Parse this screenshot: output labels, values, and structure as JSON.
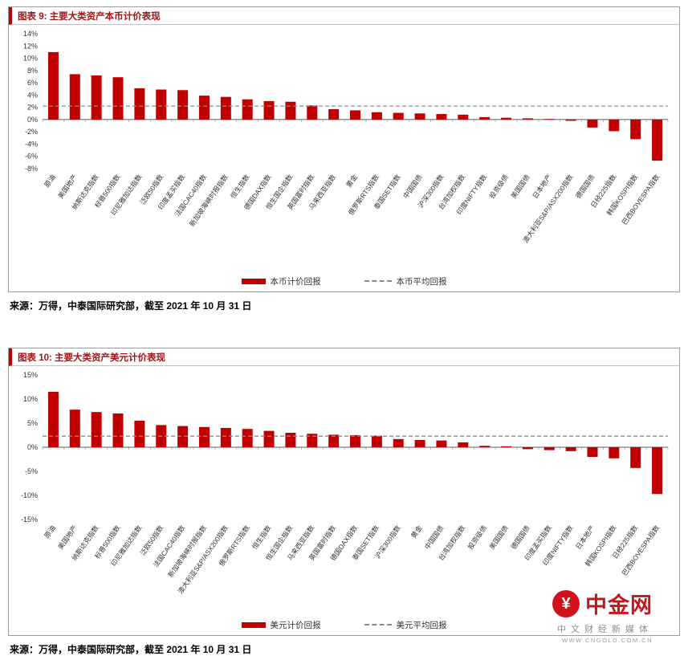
{
  "figures": [
    {
      "source": "来源：万得，中泰国际研究部，截至 2021 年 10 月 31 日"
    },
    {
      "source": "来源：万得，中泰国际研究部，截至 2021 年 10 月 31 日"
    }
  ],
  "chart_data": [
    {
      "type": "bar",
      "title": "图表 9: 主要大类资产本币计价表现",
      "categories": [
        "原油",
        "美国地产",
        "纳斯达克指数",
        "标普500指数",
        "印尼雅加达指数",
        "泛欧50指数",
        "印度孟买指数",
        "法国CAC40指数",
        "新加坡海峡时报指数",
        "恒生指数",
        "德国DAX指数",
        "恒生国企指数",
        "英国富时指数",
        "马来西亚指数",
        "黄金",
        "俄罗斯RTS指数",
        "泰国SET指数",
        "中国国债",
        "沪深300指数",
        "台湾加权指数",
        "印度NIFTY指数",
        "投资级债",
        "美国国债",
        "日本地产",
        "澳大利亚S&P/ASX200指数",
        "德国国债",
        "日经225指数",
        "韩国KOSPI指数",
        "巴西BOVESPA指数"
      ],
      "values": [
        11.0,
        7.4,
        7.2,
        6.9,
        5.1,
        4.9,
        4.8,
        3.9,
        3.7,
        3.3,
        3.0,
        2.9,
        2.3,
        1.7,
        1.5,
        1.2,
        1.1,
        1.0,
        0.9,
        0.8,
        0.4,
        0.3,
        0.2,
        0.1,
        -0.2,
        -1.3,
        -1.9,
        -3.2,
        -6.7
      ],
      "average": 2.2,
      "ylim": [
        -8,
        14
      ],
      "yticks": [
        14,
        12,
        10,
        8,
        6,
        4,
        2,
        0,
        -2,
        -4,
        -6,
        -8
      ],
      "legend": [
        "本币计价回报",
        "本币平均回报"
      ],
      "bar_color": "#c00000",
      "avg_line_color": "#8c8c8c",
      "legend_position": "bottom",
      "grid": false
    },
    {
      "type": "bar",
      "title": "图表 10: 主要大类资产美元计价表现",
      "categories": [
        "原油",
        "美国地产",
        "纳斯达克指数",
        "标普500指数",
        "印尼雅加达指数",
        "泛欧50指数",
        "法国CAC40指数",
        "新加坡海峡时报指数",
        "澳大利亚S&P/ASX200指数",
        "俄罗斯RTS指数",
        "恒生指数",
        "恒生国企指数",
        "马来西亚指数",
        "英国富时指数",
        "德国DAX指数",
        "泰国SET指数",
        "沪深300指数",
        "黄金",
        "中国国债",
        "台湾加权指数",
        "投资级债",
        "美国国债",
        "德国国债",
        "印度孟买指数",
        "印度NIFTY指数",
        "日本地产",
        "韩国KOSPI指数",
        "日经225指数",
        "巴西BOVESPA指数"
      ],
      "values": [
        11.5,
        7.8,
        7.3,
        7.0,
        5.5,
        4.6,
        4.4,
        4.2,
        4.0,
        3.8,
        3.4,
        3.0,
        2.8,
        2.6,
        2.5,
        2.4,
        1.7,
        1.5,
        1.4,
        1.0,
        0.3,
        0.2,
        -0.4,
        -0.6,
        -0.8,
        -2.0,
        -2.3,
        -4.3,
        -9.7
      ],
      "average": 2.3,
      "ylim": [
        -15,
        15
      ],
      "yticks": [
        15,
        10,
        5,
        0,
        -5,
        -10,
        -15
      ],
      "legend": [
        "美元计价回报",
        "美元平均回报"
      ],
      "bar_color": "#c00000",
      "avg_line_color": "#8c8c8c",
      "legend_position": "bottom",
      "grid": false
    }
  ],
  "logo": {
    "symbol": "¥",
    "name": "中金网",
    "tagline": "中文财经新媒体",
    "url": "WWW.CNGOLD.COM.CN",
    "brand_color": "#d0121a"
  }
}
